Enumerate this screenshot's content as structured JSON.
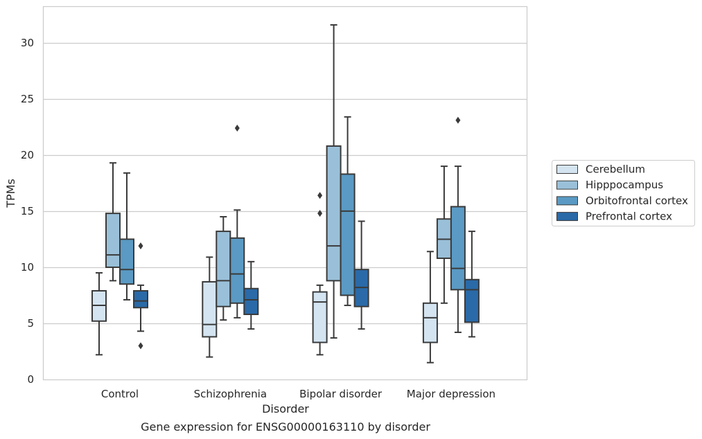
{
  "caption": "Gene expression for ENSG00000163110 by disorder",
  "chart_data": {
    "type": "box",
    "xlabel": "Disorder",
    "ylabel": "TPMs",
    "ylim": [
      0,
      33.2
    ],
    "yticks": [
      0,
      5,
      10,
      15,
      20,
      25,
      30
    ],
    "grid": "horizontal",
    "legend_position": "right",
    "categories": [
      "Control",
      "Schizophrenia",
      "Bipolar disorder",
      "Major depression"
    ],
    "series": [
      {
        "name": "Cerebellum",
        "color": "#d4e4f1",
        "boxes": [
          {
            "whislo": 2.2,
            "q1": 5.2,
            "med": 6.6,
            "q3": 7.9,
            "whishi": 9.5,
            "fliers": []
          },
          {
            "whislo": 2.0,
            "q1": 3.8,
            "med": 4.9,
            "q3": 8.7,
            "whishi": 10.9,
            "fliers": []
          },
          {
            "whislo": 2.2,
            "q1": 3.3,
            "med": 6.9,
            "q3": 7.8,
            "whishi": 8.4,
            "fliers": [
              14.8,
              16.4
            ]
          },
          {
            "whislo": 1.5,
            "q1": 3.3,
            "med": 5.5,
            "q3": 6.8,
            "whishi": 11.4,
            "fliers": []
          }
        ]
      },
      {
        "name": "Hipppocampus",
        "color": "#9ac0d9",
        "boxes": [
          {
            "whislo": 8.8,
            "q1": 10.0,
            "med": 11.1,
            "q3": 14.8,
            "whishi": 19.3,
            "fliers": []
          },
          {
            "whislo": 5.3,
            "q1": 6.5,
            "med": 8.8,
            "q3": 13.2,
            "whishi": 14.5,
            "fliers": []
          },
          {
            "whislo": 3.7,
            "q1": 8.8,
            "med": 11.9,
            "q3": 20.8,
            "whishi": 31.6,
            "fliers": []
          },
          {
            "whislo": 6.8,
            "q1": 10.8,
            "med": 12.5,
            "q3": 14.3,
            "whishi": 19.0,
            "fliers": []
          }
        ]
      },
      {
        "name": "Orbitofrontal cortex",
        "color": "#5a9ac4",
        "boxes": [
          {
            "whislo": 7.1,
            "q1": 8.5,
            "med": 9.8,
            "q3": 12.5,
            "whishi": 18.4,
            "fliers": []
          },
          {
            "whislo": 5.5,
            "q1": 6.8,
            "med": 9.4,
            "q3": 12.6,
            "whishi": 15.1,
            "fliers": [
              22.4
            ]
          },
          {
            "whislo": 6.6,
            "q1": 7.5,
            "med": 15.0,
            "q3": 18.3,
            "whishi": 23.4,
            "fliers": []
          },
          {
            "whislo": 4.2,
            "q1": 8.0,
            "med": 9.9,
            "q3": 15.4,
            "whishi": 19.0,
            "fliers": [
              23.1
            ]
          }
        ]
      },
      {
        "name": "Prefrontal cortex",
        "color": "#2a6aa8",
        "boxes": [
          {
            "whislo": 4.3,
            "q1": 6.4,
            "med": 7.0,
            "q3": 7.9,
            "whishi": 8.4,
            "fliers": [
              3.0,
              11.9
            ]
          },
          {
            "whislo": 4.5,
            "q1": 5.8,
            "med": 7.1,
            "q3": 8.1,
            "whishi": 10.5,
            "fliers": []
          },
          {
            "whislo": 4.5,
            "q1": 6.5,
            "med": 8.2,
            "q3": 9.8,
            "whishi": 14.1,
            "fliers": []
          },
          {
            "whislo": 3.8,
            "q1": 5.1,
            "med": 8.0,
            "q3": 8.9,
            "whishi": 13.2,
            "fliers": []
          }
        ]
      }
    ]
  }
}
